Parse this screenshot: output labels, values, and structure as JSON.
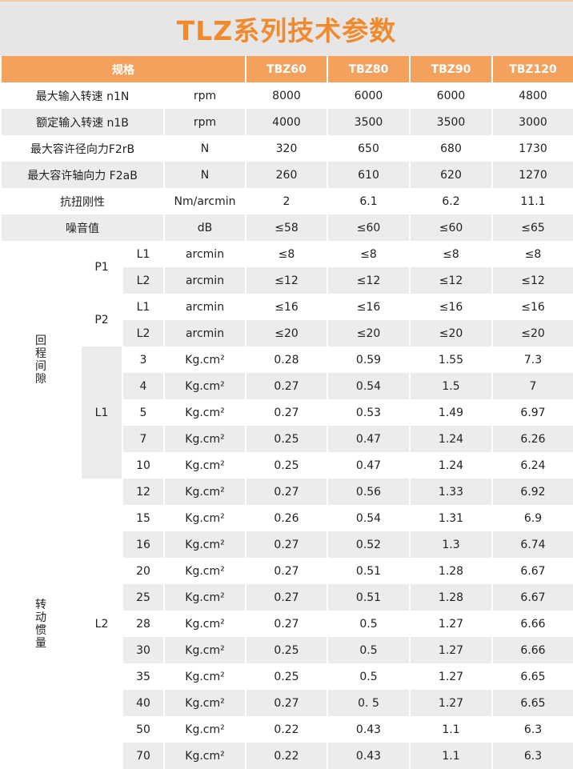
{
  "title": "TLZ系列技术参数",
  "colors": {
    "title": "#f08a2c",
    "header_bg": "#f4a15e",
    "row_alt": "#ececec",
    "band": "#e6e6e6"
  },
  "header": {
    "spec": "规格",
    "models": [
      "TBZ60",
      "TBZ80",
      "TBZ90",
      "TBZ120"
    ]
  },
  "top_rows": [
    {
      "label": "最大输入转速 n1N",
      "unit": "rpm",
      "values": [
        "8000",
        "6000",
        "6000",
        "4800"
      ]
    },
    {
      "label": "额定输入转速 n1B",
      "unit": "rpm",
      "values": [
        "4000",
        "3500",
        "3500",
        "3000"
      ]
    },
    {
      "label": "最大容许径向力F2rB",
      "unit": "N",
      "values": [
        "320",
        "650",
        "680",
        "1730"
      ]
    },
    {
      "label": "最大容许轴向力 F2aB",
      "unit": "N",
      "values": [
        "260",
        "610",
        "620",
        "1270"
      ]
    },
    {
      "label": "抗扭刚性",
      "unit": "Nm/arcmin",
      "values": [
        "2",
        "6.1",
        "6.2",
        "11.1"
      ]
    },
    {
      "label": "噪音值",
      "unit": "dB",
      "values": [
        "≤58",
        "≤60",
        "≤60",
        "≤65"
      ]
    }
  ],
  "groups_a": [
    {
      "label": "回程间隙",
      "span": 9
    },
    {
      "label": "转动惯量",
      "span": 11
    }
  ],
  "groups_b": [
    {
      "label": "P1",
      "span": 2,
      "gray": false
    },
    {
      "label": "P2",
      "span": 2,
      "gray": false
    },
    {
      "label": "L1",
      "span": 5,
      "gray": true
    },
    {
      "label": "L2",
      "span": 11,
      "gray": false
    }
  ],
  "lower_rows": [
    {
      "sub": "L1",
      "unit": "arcmin",
      "values": [
        "≤8",
        "≤8",
        "≤8",
        "≤8"
      ]
    },
    {
      "sub": "L2",
      "unit": "arcmin",
      "values": [
        "≤12",
        "≤12",
        "≤12",
        "≤12"
      ]
    },
    {
      "sub": "L1",
      "unit": "arcmin",
      "values": [
        "≤16",
        "≤16",
        "≤16",
        "≤16"
      ]
    },
    {
      "sub": "L2",
      "unit": "arcmin",
      "values": [
        "≤20",
        "≤20",
        "≤20",
        "≤20"
      ]
    },
    {
      "sub": "3",
      "unit": "Kg.cm²",
      "values": [
        "0.28",
        "0.59",
        "1.55",
        "7.3"
      ]
    },
    {
      "sub": "4",
      "unit": "Kg.cm²",
      "values": [
        "0.27",
        "0.54",
        "1.5",
        "7"
      ]
    },
    {
      "sub": "5",
      "unit": "Kg.cm²",
      "values": [
        "0.27",
        "0.53",
        "1.49",
        "6.97"
      ]
    },
    {
      "sub": "7",
      "unit": "Kg.cm²",
      "values": [
        "0.25",
        "0.47",
        "1.24",
        "6.26"
      ]
    },
    {
      "sub": "10",
      "unit": "Kg.cm²",
      "values": [
        "0.25",
        "0.47",
        "1.24",
        "6.24"
      ]
    },
    {
      "sub": "12",
      "unit": "Kg.cm²",
      "values": [
        "0.27",
        "0.56",
        "1.33",
        "6.92"
      ]
    },
    {
      "sub": "15",
      "unit": "Kg.cm²",
      "values": [
        "0.26",
        "0.54",
        "1.31",
        "6.9"
      ]
    },
    {
      "sub": "16",
      "unit": "Kg.cm²",
      "values": [
        "0.27",
        "0.52",
        "1.3",
        "6.74"
      ]
    },
    {
      "sub": "20",
      "unit": "Kg.cm²",
      "values": [
        "0.27",
        "0.51",
        "1.28",
        "6.67"
      ]
    },
    {
      "sub": "25",
      "unit": "Kg.cm²",
      "values": [
        "0.27",
        "0.51",
        "1.28",
        "6.67"
      ]
    },
    {
      "sub": "28",
      "unit": "Kg.cm²",
      "values": [
        "0.27",
        "0.5",
        "1.27",
        "6.66"
      ]
    },
    {
      "sub": "30",
      "unit": "Kg.cm²",
      "values": [
        "0.25",
        "0.5",
        "1.27",
        "6.66"
      ]
    },
    {
      "sub": "35",
      "unit": "Kg.cm²",
      "values": [
        "0.25",
        "0.5",
        "1.27",
        "6.65"
      ]
    },
    {
      "sub": "40",
      "unit": "Kg.cm²",
      "values": [
        "0.27",
        "0. 5",
        "1.27",
        "6.65"
      ]
    },
    {
      "sub": "50",
      "unit": "Kg.cm²",
      "values": [
        "0.22",
        "0.43",
        "1.1",
        "6.3"
      ]
    },
    {
      "sub": "70",
      "unit": "Kg.cm²",
      "values": [
        "0.22",
        "0.43",
        "1.1",
        "6.3"
      ]
    }
  ]
}
